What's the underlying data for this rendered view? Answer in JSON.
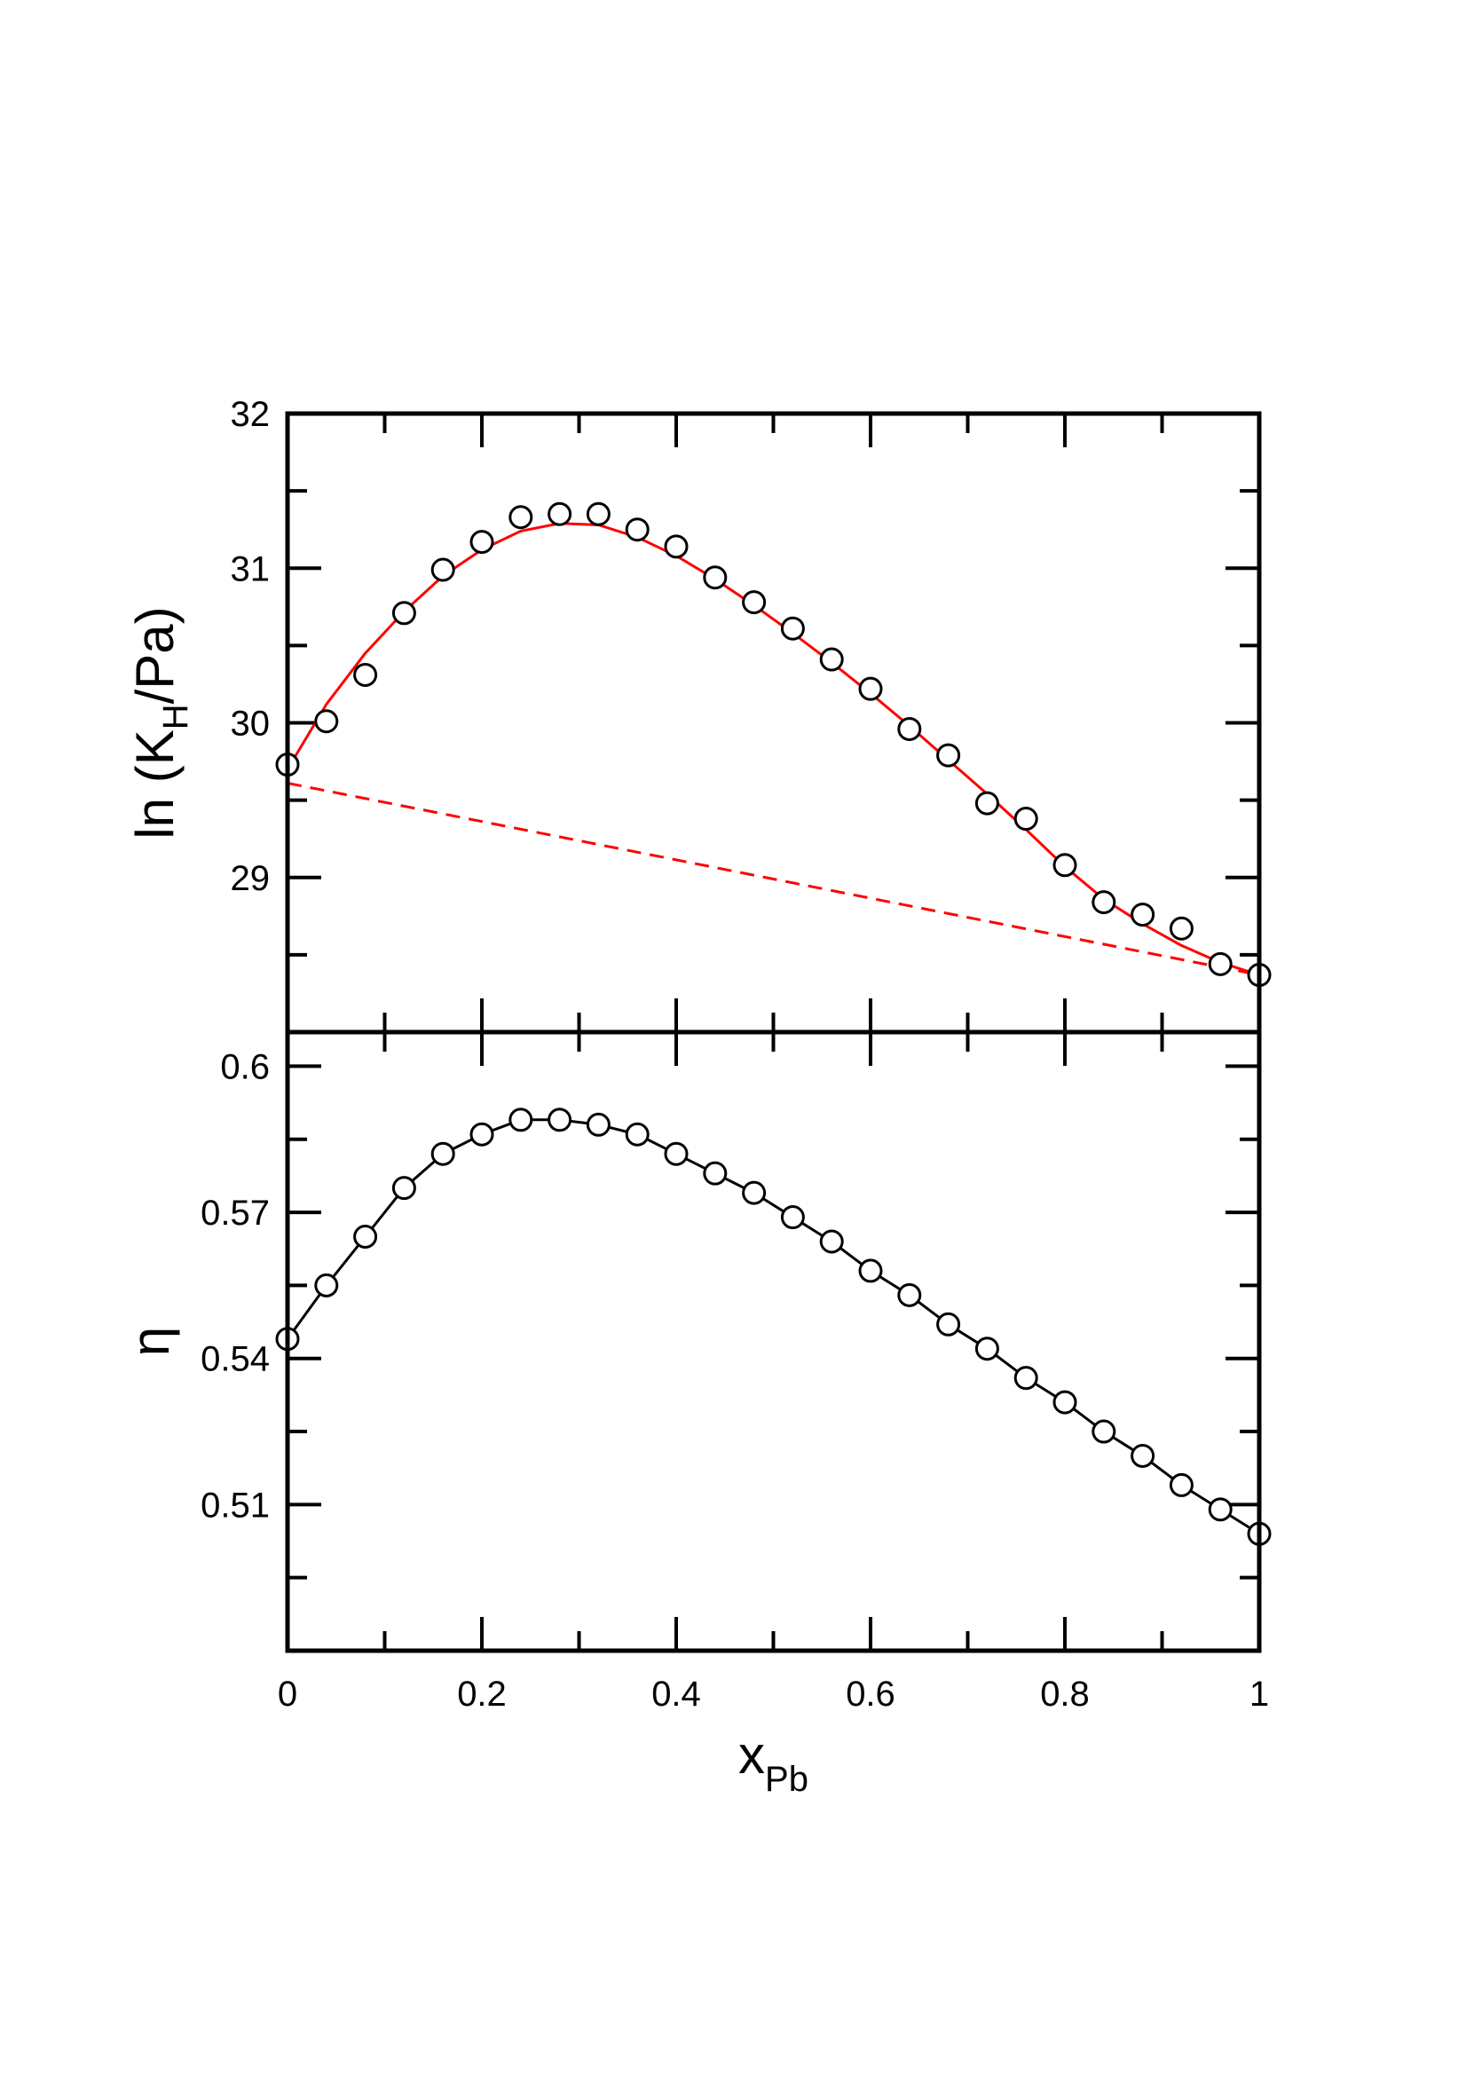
{
  "chart_data": [
    {
      "type": "scatter",
      "panel": "top",
      "ylabel": "ln (K",
      "ylabel_sub": "H",
      "ylabel_tail": "/Pa)",
      "ylim": [
        28,
        32
      ],
      "yticks": [
        29,
        30,
        31,
        32
      ],
      "ytick_labels": [
        "29",
        "30",
        "31",
        "32"
      ],
      "xlim": [
        0,
        1
      ],
      "grid": false,
      "colors": {
        "fit": "#ff0000",
        "points": "#000000"
      },
      "series": [
        {
          "kind": "markers",
          "x": [
            0,
            0.04,
            0.08,
            0.12,
            0.16,
            0.2,
            0.24,
            0.28,
            0.32,
            0.36,
            0.4,
            0.44,
            0.48,
            0.52,
            0.56,
            0.6,
            0.64,
            0.68,
            0.72,
            0.76,
            0.8,
            0.84,
            0.88,
            0.92,
            0.96,
            1.0
          ],
          "y": [
            29.73,
            30.01,
            30.31,
            30.71,
            30.99,
            31.17,
            31.33,
            31.35,
            31.35,
            31.25,
            31.14,
            30.94,
            30.78,
            30.61,
            30.41,
            30.22,
            29.96,
            29.79,
            29.48,
            29.38,
            29.08,
            28.84,
            28.76,
            28.67,
            28.44,
            28.37
          ]
        },
        {
          "kind": "smooth-line",
          "x": [
            0,
            0.04,
            0.08,
            0.12,
            0.16,
            0.2,
            0.24,
            0.28,
            0.32,
            0.36,
            0.4,
            0.44,
            0.48,
            0.52,
            0.56,
            0.6,
            0.64,
            0.68,
            0.72,
            0.76,
            0.8,
            0.84,
            0.88,
            0.92,
            0.96,
            1.0
          ],
          "y": [
            29.7,
            30.12,
            30.45,
            30.72,
            30.95,
            31.12,
            31.24,
            31.29,
            31.28,
            31.2,
            31.08,
            30.93,
            30.76,
            30.58,
            30.39,
            30.19,
            29.98,
            29.76,
            29.54,
            29.31,
            29.07,
            28.86,
            28.7,
            28.56,
            28.45,
            28.37
          ]
        },
        {
          "kind": "dashed-line",
          "x": [
            0,
            1
          ],
          "y": [
            29.61,
            28.37
          ]
        }
      ]
    },
    {
      "type": "line",
      "panel": "bottom",
      "ylabel": "η",
      "xlabel": "x",
      "xlabel_sub": "Pb",
      "ylim": [
        0.48,
        0.607
      ],
      "yticks": [
        0.51,
        0.54,
        0.57,
        0.6
      ],
      "ytick_labels": [
        "0.51",
        "0.54",
        "0.57",
        "0.6"
      ],
      "xlim": [
        0,
        1
      ],
      "xticks": [
        0,
        0.2,
        0.4,
        0.6,
        0.8,
        1
      ],
      "xtick_labels": [
        "0",
        "0.2",
        "0.4",
        "0.6",
        "0.8",
        "1"
      ],
      "grid": false,
      "colors": {
        "line": "#000000",
        "points": "#000000"
      },
      "series": [
        {
          "kind": "line-markers",
          "x": [
            0,
            0.04,
            0.08,
            0.12,
            0.16,
            0.2,
            0.24,
            0.28,
            0.32,
            0.36,
            0.4,
            0.44,
            0.48,
            0.52,
            0.56,
            0.6,
            0.64,
            0.68,
            0.72,
            0.76,
            0.8,
            0.84,
            0.88,
            0.92,
            0.96,
            1.0
          ],
          "y": [
            0.544,
            0.555,
            0.565,
            0.575,
            0.582,
            0.586,
            0.589,
            0.589,
            0.588,
            0.586,
            0.582,
            0.578,
            0.574,
            0.569,
            0.564,
            0.558,
            0.553,
            0.547,
            0.542,
            0.536,
            0.531,
            0.525,
            0.52,
            0.514,
            0.509,
            0.504
          ]
        }
      ]
    }
  ]
}
